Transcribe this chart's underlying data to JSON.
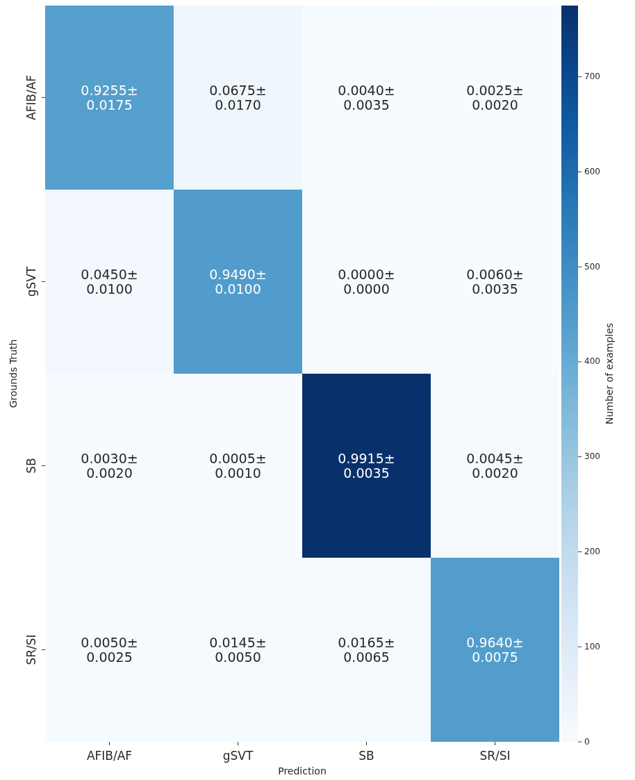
{
  "chart_data": {
    "type": "heatmap",
    "xlabel": "Prediction",
    "ylabel": "Grounds Truth",
    "clabel": "Number of examples",
    "categories": [
      "AFIB/AF",
      "gSVT",
      "SB",
      "SR/SI"
    ],
    "y_categories": [
      "AFIB/AF",
      "gSVT",
      "SB",
      "SR/SI"
    ],
    "cells": [
      [
        440,
        32,
        2,
        1
      ],
      [
        21,
        450,
        0,
        3
      ],
      [
        2,
        0,
        773,
        4
      ],
      [
        2,
        7,
        8,
        445
      ]
    ],
    "cell_labels": [
      [
        "0.9255±\n0.0175",
        "0.0675±\n0.0170",
        "0.0040±\n0.0035",
        "0.0025±\n0.0020"
      ],
      [
        "0.0450±\n0.0100",
        "0.9490±\n0.0100",
        "0.0000±\n0.0000",
        "0.0060±\n0.0035"
      ],
      [
        "0.0030±\n0.0020",
        "0.0005±\n0.0010",
        "0.9915±\n0.0035",
        "0.0045±\n0.0020"
      ],
      [
        "0.0050±\n0.0025",
        "0.0145±\n0.0050",
        "0.0165±\n0.0065",
        "0.9640±\n0.0075"
      ]
    ],
    "clim": [
      0,
      775
    ],
    "cticks": [
      0,
      100,
      200,
      300,
      400,
      500,
      600,
      700
    ]
  }
}
